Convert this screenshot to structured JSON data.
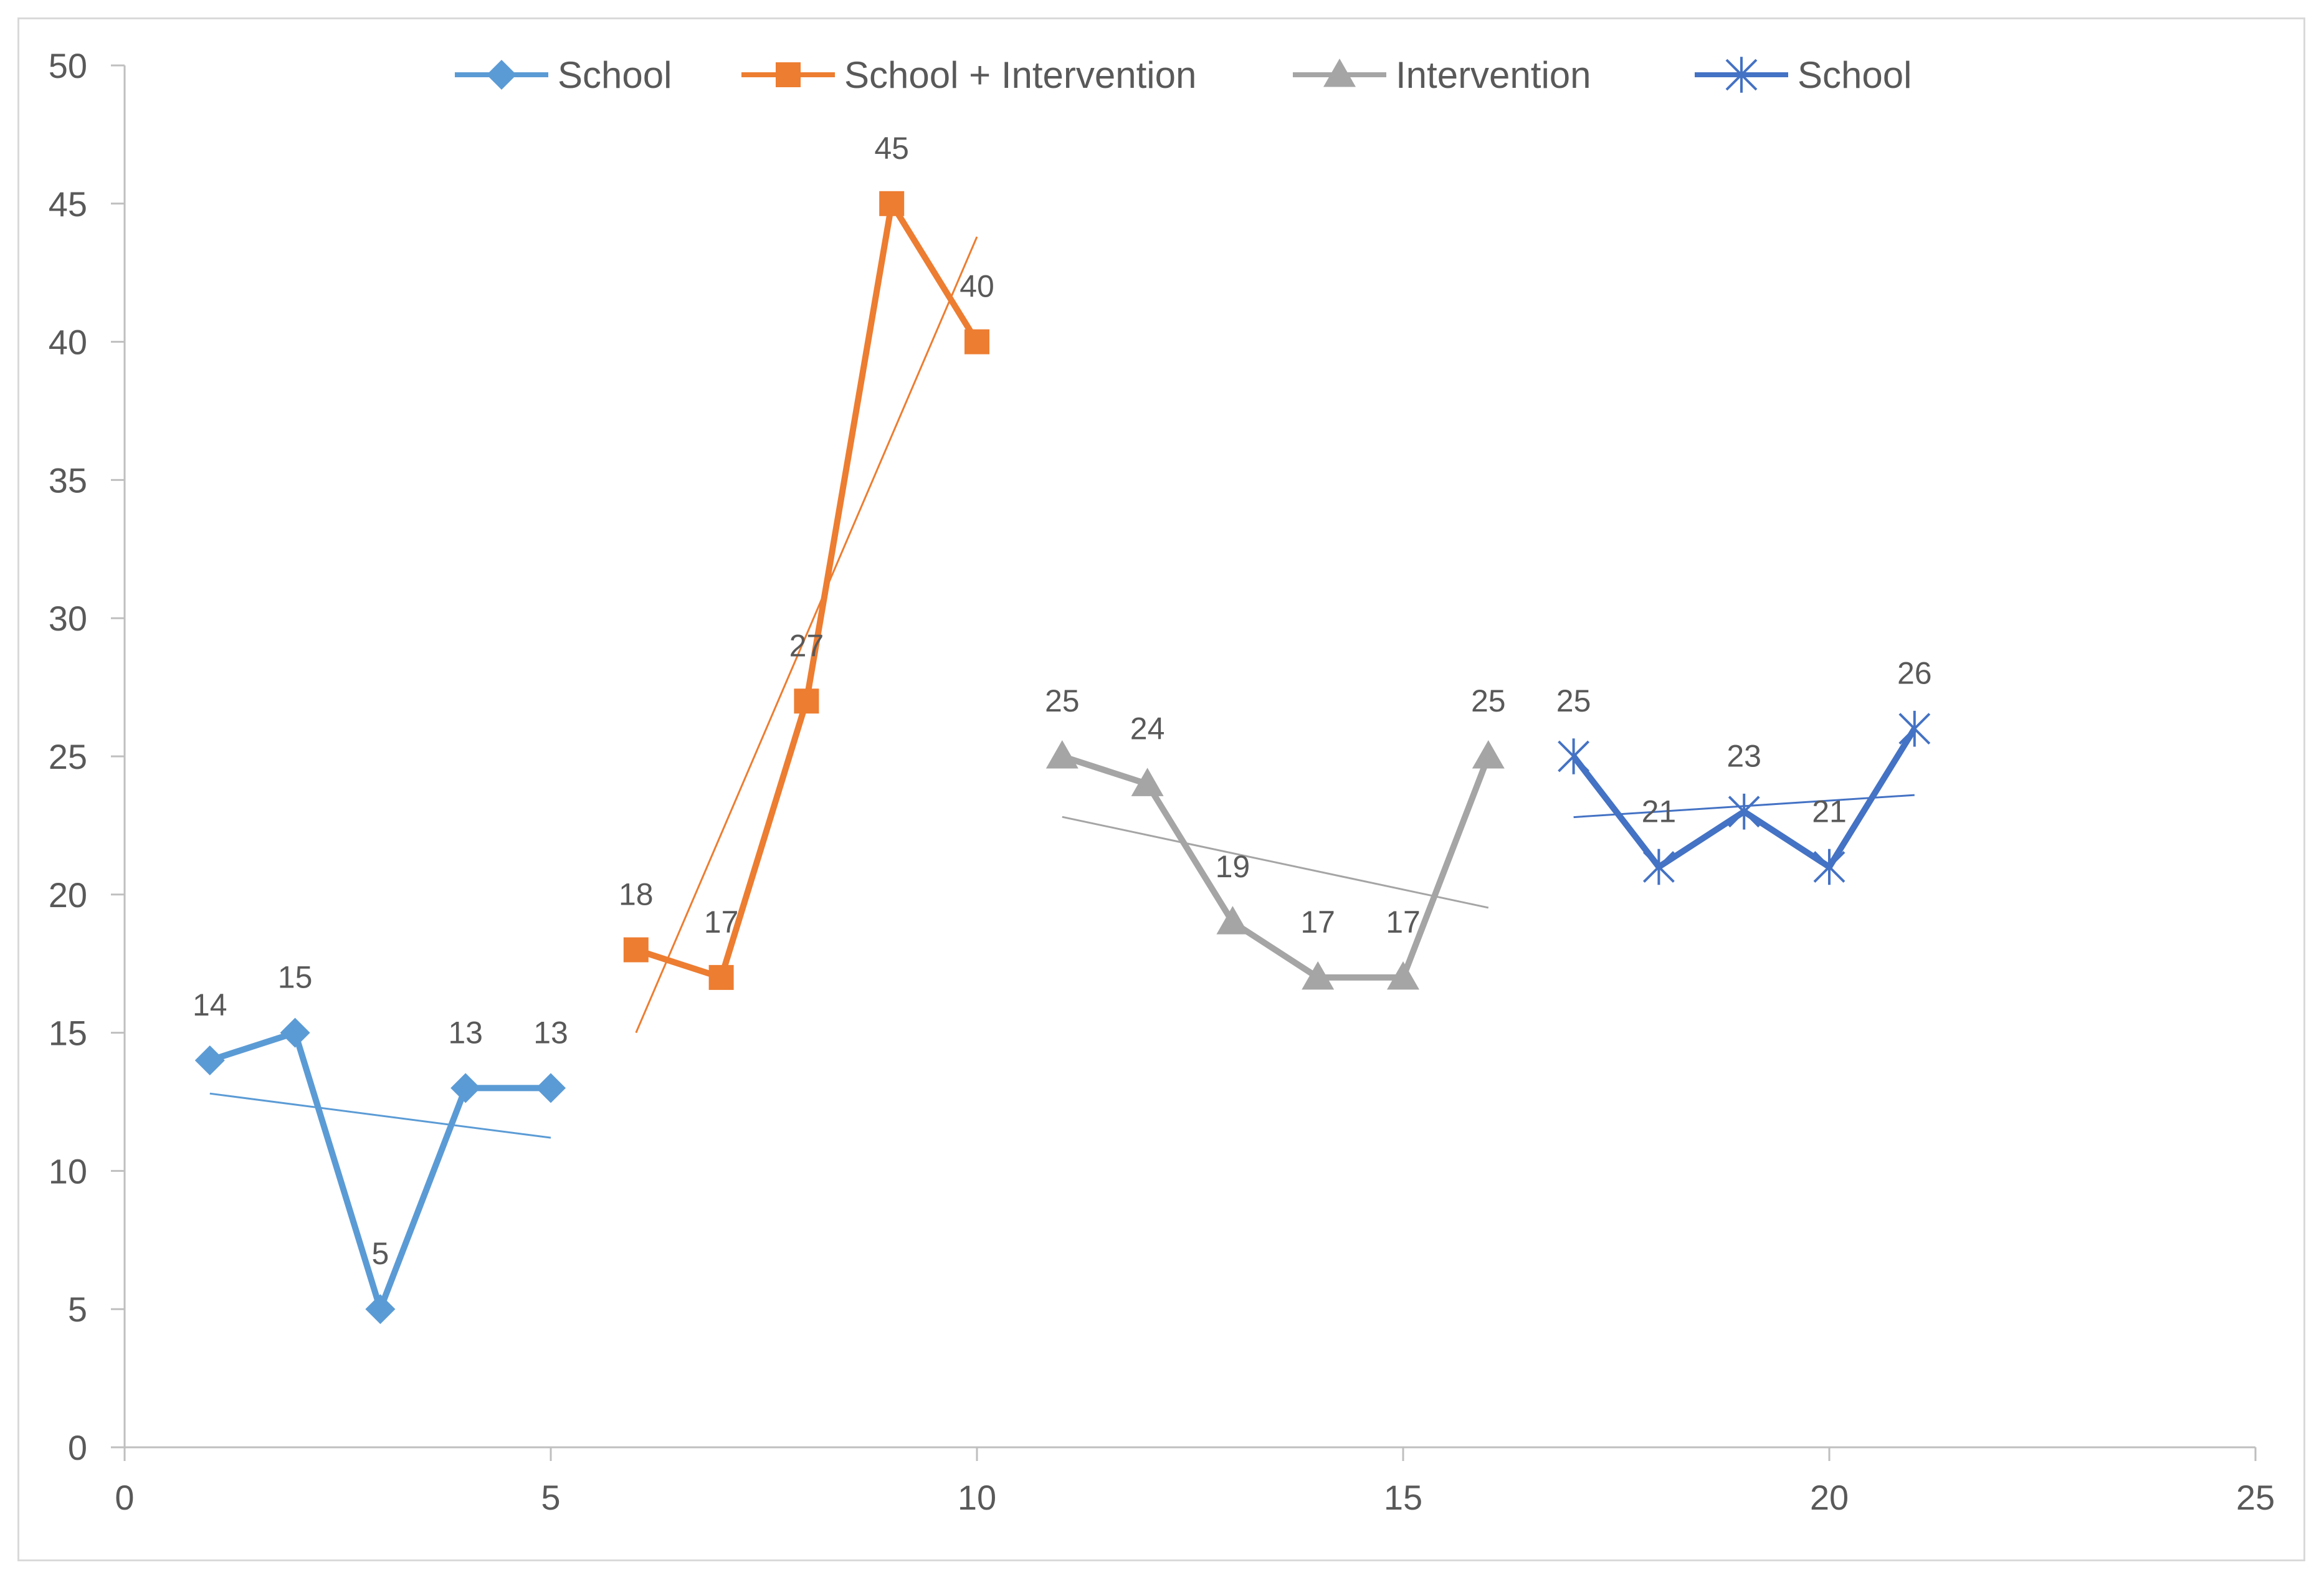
{
  "chart_data": {
    "type": "line",
    "title": "",
    "xlabel": "",
    "ylabel": "",
    "xlim": [
      0,
      25
    ],
    "ylim": [
      0,
      50
    ],
    "x_ticks": [
      0,
      5,
      10,
      15,
      20,
      25
    ],
    "y_ticks": [
      0,
      5,
      10,
      15,
      20,
      25,
      30,
      35,
      40,
      45,
      50
    ],
    "grid": false,
    "legend_position": "top",
    "series": [
      {
        "name": "School",
        "color": "#5b9bd5",
        "marker": "diamond",
        "x": [
          1,
          2,
          3,
          4,
          5
        ],
        "y": [
          14,
          15,
          5,
          13,
          13
        ],
        "labels": [
          "14",
          "15",
          "5",
          "13",
          "13"
        ],
        "trendline": true
      },
      {
        "name": "School + Intervention",
        "color": "#ed7d31",
        "marker": "square",
        "x": [
          6,
          7,
          8,
          9,
          10
        ],
        "y": [
          18,
          17,
          27,
          45,
          40
        ],
        "labels": [
          "18",
          "17",
          "27",
          "45",
          "40"
        ],
        "trendline": true
      },
      {
        "name": "Intervention",
        "color": "#a5a5a5",
        "marker": "triangle",
        "x": [
          11,
          12,
          13,
          14,
          15,
          16
        ],
        "y": [
          25,
          24,
          19,
          17,
          17,
          25
        ],
        "labels": [
          "25",
          "24",
          "19",
          "17",
          "17",
          "25"
        ],
        "trendline": true
      },
      {
        "name": "School",
        "color": "#4472c4",
        "marker": "asterisk",
        "x": [
          17,
          18,
          19,
          20,
          21
        ],
        "y": [
          25,
          21,
          23,
          21,
          26
        ],
        "labels": [
          "25",
          "21",
          "23",
          "21",
          "26"
        ],
        "trendline": true
      }
    ]
  }
}
